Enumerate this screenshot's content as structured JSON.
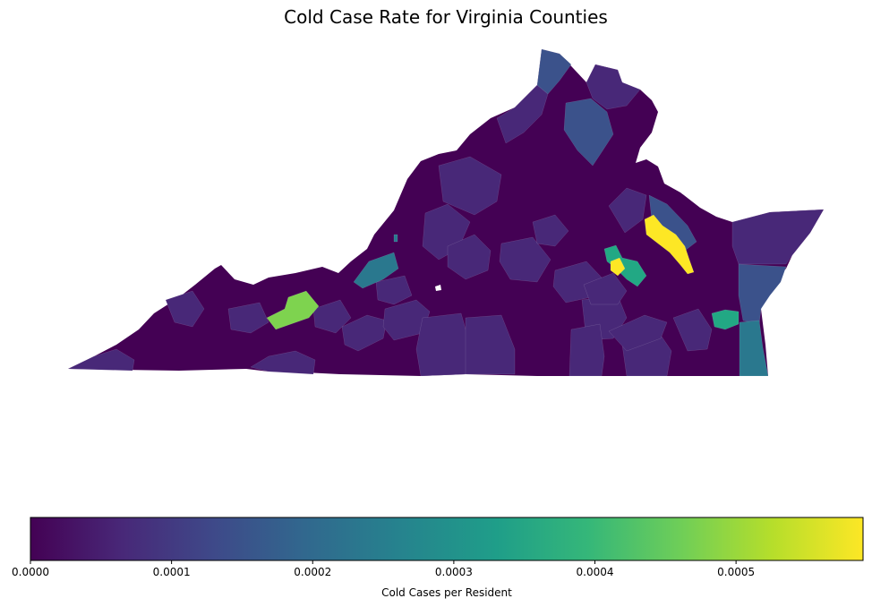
{
  "title": "Cold Case Rate for Virginia Counties",
  "colorbar": {
    "label": "Cold Cases per Resident",
    "ticks": [
      "0.0000",
      "0.0001",
      "0.0002",
      "0.0003",
      "0.0004",
      "0.0005"
    ],
    "tick_values": [
      0,
      0.0001,
      0.0002,
      0.0003,
      0.0004,
      0.0005
    ],
    "range": [
      0,
      0.00059
    ],
    "colormap": "viridis",
    "stops": [
      "#440154",
      "#482878",
      "#3e4989",
      "#31688e",
      "#26828e",
      "#1f9e89",
      "#35b779",
      "#6ece58",
      "#b5de2b",
      "#fde725"
    ]
  },
  "map": {
    "region": "Virginia",
    "base_color": "#440154",
    "highlight_colors": {
      "very_high": "#fde725",
      "high": "#7ed34f",
      "mid_high": "#22a884",
      "mid": "#2a788e",
      "mid_low": "#3b528b",
      "low": "#482878"
    }
  }
}
